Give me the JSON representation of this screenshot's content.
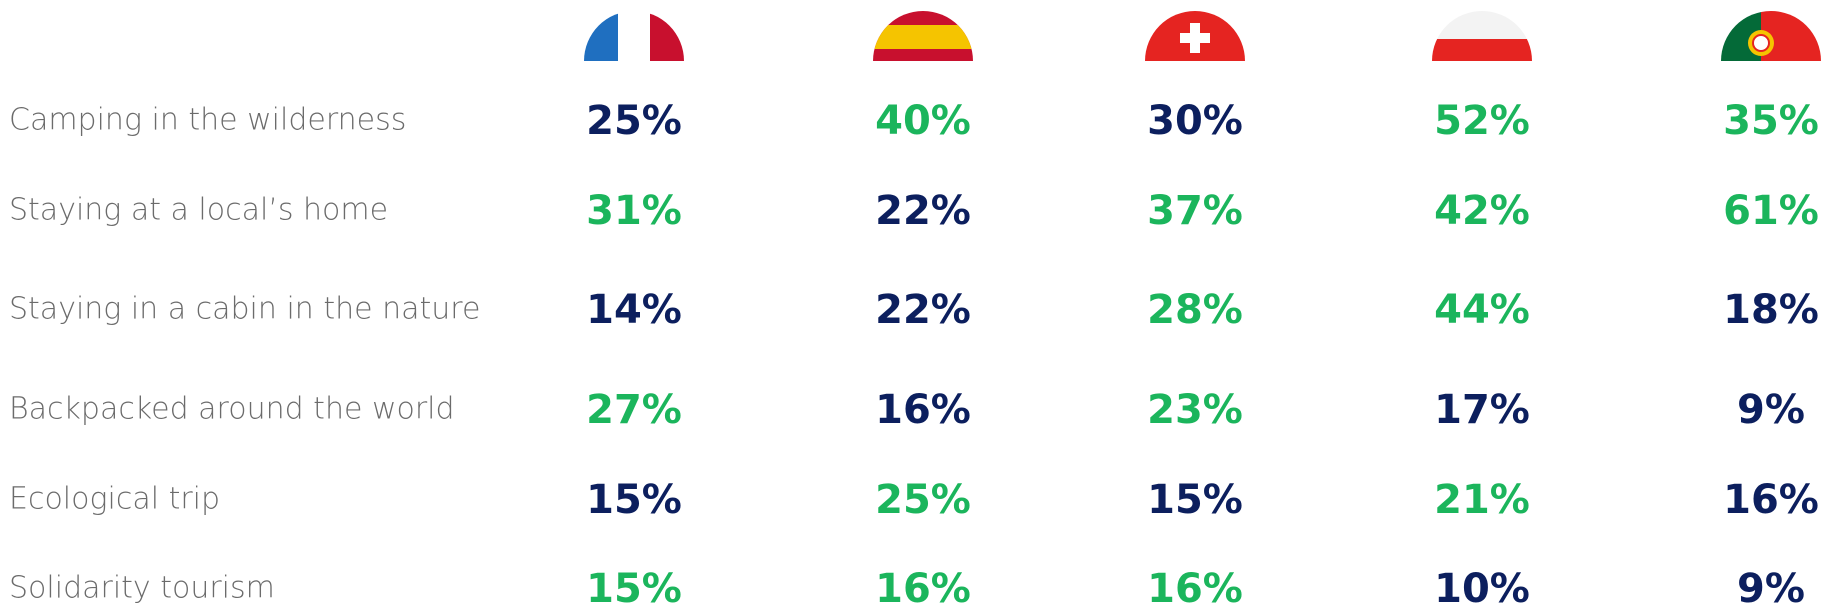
{
  "table": {
    "colors": {
      "default": "#0c1f5e",
      "highlight": "#1bb55c"
    },
    "rows": [
      {
        "label": "Camping in the wilderness",
        "values": [
          "25%",
          "40%",
          "30%",
          "52%",
          "35%"
        ],
        "highlight": [
          false,
          true,
          false,
          true,
          true
        ]
      },
      {
        "label": "Staying at a local’s home",
        "values": [
          "31%",
          "22%",
          "37%",
          "42%",
          "61%"
        ],
        "highlight": [
          true,
          false,
          true,
          true,
          true
        ]
      },
      {
        "label": "Staying in a cabin in the nature",
        "values": [
          "14%",
          "22%",
          "28%",
          "44%",
          "18%"
        ],
        "highlight": [
          false,
          false,
          true,
          true,
          false
        ]
      },
      {
        "label": "Backpacked around the world",
        "values": [
          "27%",
          "16%",
          "23%",
          "17%",
          "9%"
        ],
        "highlight": [
          true,
          false,
          true,
          false,
          false
        ]
      },
      {
        "label": "Ecological trip",
        "values": [
          "15%",
          "25%",
          "15%",
          "21%",
          "16%"
        ],
        "highlight": [
          false,
          true,
          false,
          true,
          false
        ]
      },
      {
        "label": "Solidarity tourism",
        "values": [
          "15%",
          "16%",
          "16%",
          "10%",
          "9%"
        ],
        "highlight": [
          true,
          true,
          true,
          false,
          false
        ]
      }
    ]
  }
}
